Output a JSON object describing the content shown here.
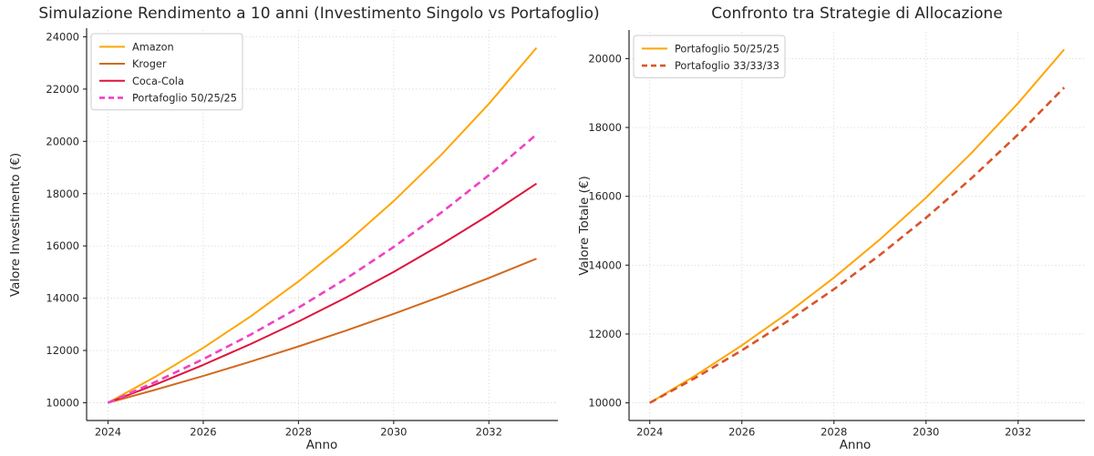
{
  "figure": {
    "background": "#ffffff",
    "text_color": "#262626",
    "spine_color": "#262626",
    "grid_color": "#cfcfcf"
  },
  "chart_data": [
    {
      "type": "line",
      "title": "Simulazione Rendimento a 10 anni (Investimento Singolo vs Portafoglio)",
      "xlabel": "Anno",
      "ylabel": "Valore Investimento (€)",
      "x": [
        2024,
        2025,
        2026,
        2027,
        2028,
        2029,
        2030,
        2031,
        2032,
        2033
      ],
      "xticks": [
        2024,
        2026,
        2028,
        2030,
        2032
      ],
      "yticks": [
        10000,
        12000,
        14000,
        16000,
        18000,
        20000,
        22000,
        24000
      ],
      "xlim": [
        2023.55,
        2033.45
      ],
      "ylim": [
        9321,
        24259
      ],
      "grid": "dotted",
      "legend_position": "upper-left",
      "series": [
        {
          "name": "Amazon",
          "color": "#FFA500",
          "style": "solid",
          "values": [
            10000,
            11000,
            12100,
            13310,
            14641,
            16105.1,
            17715.61,
            19487.17,
            21435.89,
            23579.48
          ]
        },
        {
          "name": "Kroger",
          "color": "#D2691E",
          "style": "solid",
          "values": [
            10000,
            10500,
            11025,
            11576.25,
            12155.06,
            12762.82,
            13400.96,
            14071.0,
            14774.55,
            15513.28
          ]
        },
        {
          "name": "Coca-Cola",
          "color": "#DC143C",
          "style": "solid",
          "values": [
            10000,
            10700,
            11449,
            12250.43,
            13107.96,
            14025.52,
            15007.3,
            16057.81,
            17181.86,
            18384.59
          ]
        },
        {
          "name": "Portafoglio 50/25/25",
          "color": "#F041C3",
          "style": "dashed",
          "values": [
            10000,
            10800,
            11668.5,
            12611.67,
            13636.26,
            14749.64,
            15959.86,
            17275.79,
            18707.05,
            20264.2
          ]
        }
      ]
    },
    {
      "type": "line",
      "title": "Confronto tra Strategie di Allocazione",
      "xlabel": "Anno",
      "ylabel": "Valore Totale (€)",
      "x": [
        2024,
        2025,
        2026,
        2027,
        2028,
        2029,
        2030,
        2031,
        2032,
        2033
      ],
      "xticks": [
        2024,
        2026,
        2028,
        2030,
        2032
      ],
      "yticks": [
        10000,
        12000,
        14000,
        16000,
        18000,
        20000
      ],
      "xlim": [
        2023.55,
        2033.45
      ],
      "ylim": [
        9487,
        20777
      ],
      "grid": "dotted",
      "legend_position": "upper-left",
      "series": [
        {
          "name": "Portafoglio 50/25/25",
          "color": "#FFA500",
          "style": "solid",
          "values": [
            10000,
            10800,
            11668.5,
            12611.67,
            13636.26,
            14749.64,
            15959.86,
            17275.79,
            18707.05,
            20264.2
          ]
        },
        {
          "name": "Portafoglio 33/33/33",
          "color": "#D9542A",
          "style": "dashed",
          "values": [
            10000,
            10733.33,
            11524.67,
            12378.89,
            13301.34,
            14297.81,
            15374.62,
            16538.66,
            17797.43,
            19159.12
          ]
        }
      ]
    }
  ]
}
